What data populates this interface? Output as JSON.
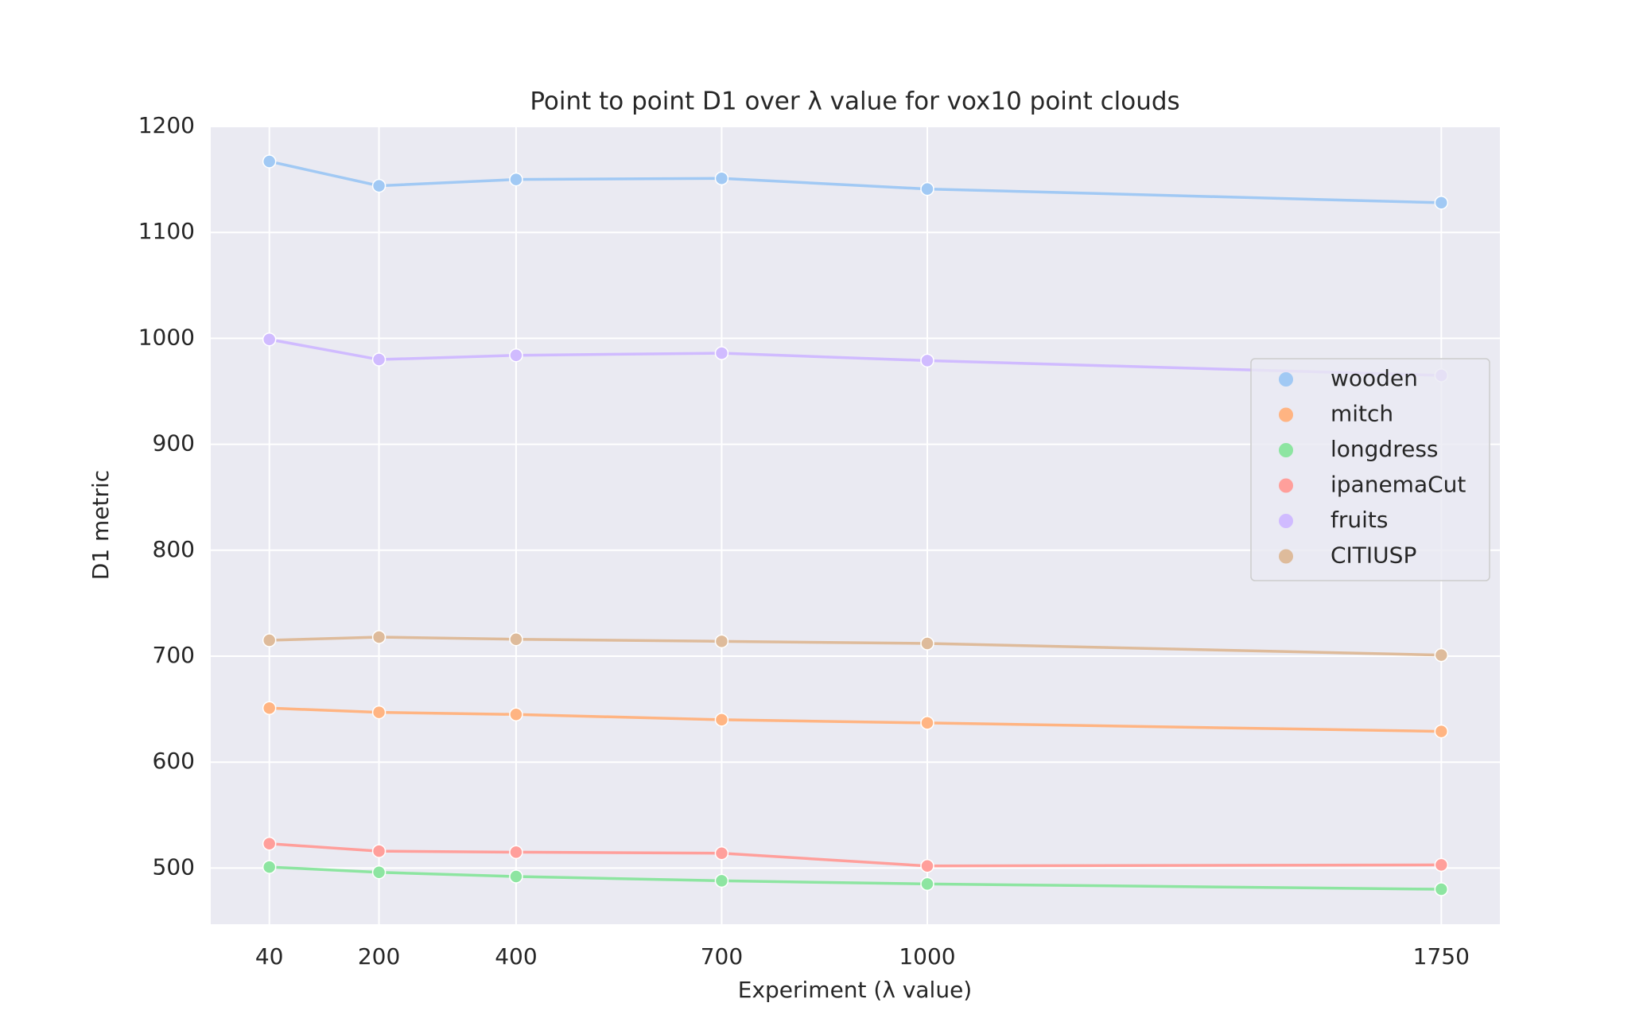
{
  "chart_data": {
    "type": "line",
    "title": "Point to point D1 over λ value for vox10 point clouds",
    "x_label": "Experiment (λ value)",
    "y_label": "D1 metric",
    "x": [
      40,
      200,
      400,
      700,
      1000,
      1750
    ],
    "xlim": [
      -45.5,
      1835.5
    ],
    "xticks": [
      40,
      200,
      400,
      700,
      1000,
      1750
    ],
    "ylim": [
      447,
      1200
    ],
    "yticks": [
      500,
      600,
      700,
      800,
      900,
      1000,
      1100,
      1200
    ],
    "grid": true,
    "legend_position": "right",
    "series": [
      {
        "name": "wooden",
        "color": "#a1c9f4",
        "values": [
          1167,
          1144,
          1150,
          1151,
          1141,
          1128
        ]
      },
      {
        "name": "mitch",
        "color": "#ffb482",
        "values": [
          651,
          647,
          645,
          640,
          637,
          629
        ]
      },
      {
        "name": "longdress",
        "color": "#8de5a1",
        "values": [
          501,
          496,
          492,
          488,
          485,
          480
        ]
      },
      {
        "name": "ipanemaCut",
        "color": "#ff9f9b",
        "values": [
          523,
          516,
          515,
          514,
          502,
          503
        ]
      },
      {
        "name": "fruits",
        "color": "#d0bbff",
        "values": [
          999,
          980,
          984,
          986,
          979,
          965
        ]
      },
      {
        "name": "CITIUSP",
        "color": "#debb9b",
        "values": [
          715,
          718,
          716,
          714,
          712,
          701
        ]
      }
    ]
  }
}
